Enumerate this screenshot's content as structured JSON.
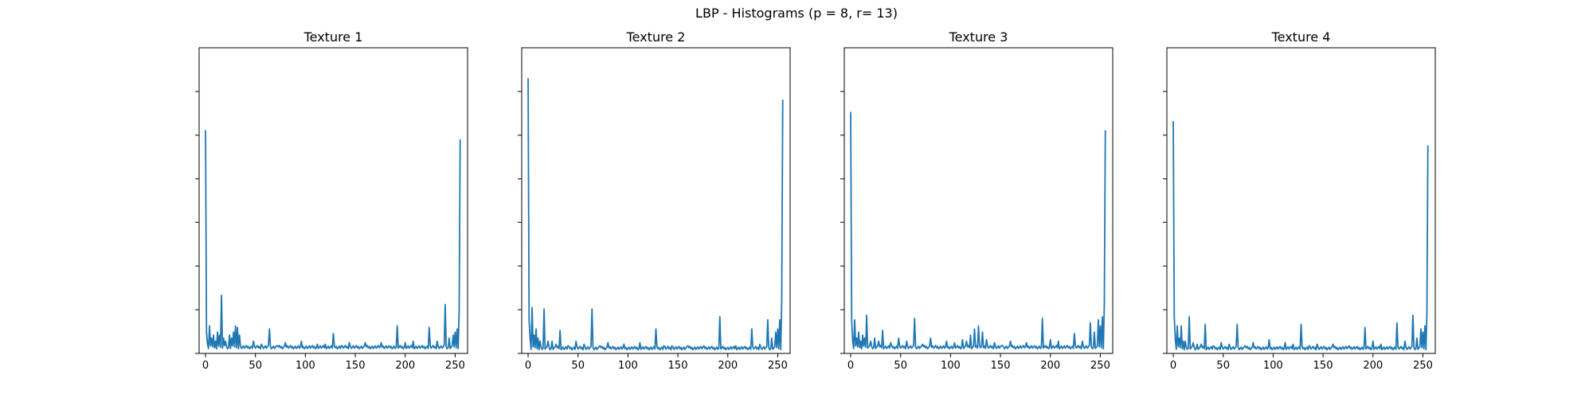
{
  "figure": {
    "title": "LBP - Histograms (p = 8, r= 13)"
  },
  "chart_data": [
    {
      "type": "line",
      "title": "Texture 1",
      "xlim": [
        -6.4,
        262.4
      ],
      "ylim": [
        0,
        1.0
      ],
      "xticks": [
        0,
        50,
        100,
        150,
        200,
        250
      ],
      "yticks": [
        0,
        0.143,
        0.286,
        0.429,
        0.571,
        0.714,
        0.857
      ],
      "ytick_labels_shown": false,
      "color": "#1f77b4",
      "base": 0.015,
      "ends": {
        "first": 0.73,
        "last": 0.7
      },
      "peaks": [
        [
          1,
          0.07
        ],
        [
          2,
          0.03
        ],
        [
          4,
          0.09
        ],
        [
          6,
          0.05
        ],
        [
          8,
          0.06
        ],
        [
          10,
          0.04
        ],
        [
          12,
          0.07
        ],
        [
          14,
          0.06
        ],
        [
          16,
          0.19
        ],
        [
          18,
          0.05
        ],
        [
          20,
          0.04
        ],
        [
          24,
          0.06
        ],
        [
          26,
          0.05
        ],
        [
          28,
          0.07
        ],
        [
          30,
          0.09
        ],
        [
          32,
          0.085
        ],
        [
          34,
          0.06
        ],
        [
          48,
          0.04
        ],
        [
          56,
          0.03
        ],
        [
          64,
          0.08
        ],
        [
          72,
          0.025
        ],
        [
          80,
          0.035
        ],
        [
          96,
          0.04
        ],
        [
          112,
          0.03
        ],
        [
          120,
          0.03
        ],
        [
          128,
          0.065
        ],
        [
          136,
          0.025
        ],
        [
          144,
          0.035
        ],
        [
          160,
          0.035
        ],
        [
          176,
          0.035
        ],
        [
          184,
          0.025
        ],
        [
          192,
          0.09
        ],
        [
          200,
          0.035
        ],
        [
          208,
          0.04
        ],
        [
          224,
          0.085
        ],
        [
          232,
          0.04
        ],
        [
          240,
          0.16
        ],
        [
          244,
          0.05
        ],
        [
          248,
          0.06
        ],
        [
          250,
          0.07
        ],
        [
          252,
          0.08
        ],
        [
          254,
          0.14
        ]
      ]
    },
    {
      "type": "line",
      "title": "Texture 2",
      "xlim": [
        -6.4,
        262.4
      ],
      "ylim": [
        0,
        1.0
      ],
      "xticks": [
        0,
        50,
        100,
        150,
        200,
        250
      ],
      "yticks": [
        0,
        0.143,
        0.286,
        0.429,
        0.571,
        0.714,
        0.857
      ],
      "ytick_labels_shown": false,
      "color": "#1f77b4",
      "base": 0.012,
      "ends": {
        "first": 0.9,
        "last": 0.83
      },
      "peaks": [
        [
          1,
          0.11
        ],
        [
          2,
          0.05
        ],
        [
          4,
          0.15
        ],
        [
          6,
          0.06
        ],
        [
          8,
          0.08
        ],
        [
          10,
          0.05
        ],
        [
          12,
          0.04
        ],
        [
          16,
          0.145
        ],
        [
          20,
          0.04
        ],
        [
          24,
          0.04
        ],
        [
          28,
          0.03
        ],
        [
          32,
          0.075
        ],
        [
          40,
          0.025
        ],
        [
          48,
          0.04
        ],
        [
          56,
          0.03
        ],
        [
          64,
          0.145
        ],
        [
          72,
          0.025
        ],
        [
          80,
          0.035
        ],
        [
          96,
          0.03
        ],
        [
          112,
          0.035
        ],
        [
          128,
          0.08
        ],
        [
          136,
          0.025
        ],
        [
          144,
          0.025
        ],
        [
          160,
          0.025
        ],
        [
          176,
          0.025
        ],
        [
          192,
          0.12
        ],
        [
          200,
          0.02
        ],
        [
          208,
          0.025
        ],
        [
          224,
          0.08
        ],
        [
          232,
          0.03
        ],
        [
          240,
          0.11
        ],
        [
          244,
          0.05
        ],
        [
          248,
          0.07
        ],
        [
          250,
          0.08
        ],
        [
          252,
          0.11
        ],
        [
          254,
          0.18
        ]
      ]
    },
    {
      "type": "line",
      "title": "Texture 3",
      "xlim": [
        -6.4,
        262.4
      ],
      "ylim": [
        0,
        1.0
      ],
      "xticks": [
        0,
        50,
        100,
        150,
        200,
        250
      ],
      "yticks": [
        0,
        0.143,
        0.286,
        0.429,
        0.571,
        0.714,
        0.857
      ],
      "ytick_labels_shown": false,
      "color": "#1f77b4",
      "base": 0.015,
      "ends": {
        "first": 0.79,
        "last": 0.73
      },
      "peaks": [
        [
          1,
          0.11
        ],
        [
          2,
          0.04
        ],
        [
          4,
          0.11
        ],
        [
          6,
          0.05
        ],
        [
          8,
          0.07
        ],
        [
          10,
          0.04
        ],
        [
          12,
          0.06
        ],
        [
          14,
          0.05
        ],
        [
          16,
          0.125
        ],
        [
          20,
          0.04
        ],
        [
          24,
          0.05
        ],
        [
          28,
          0.04
        ],
        [
          32,
          0.075
        ],
        [
          40,
          0.035
        ],
        [
          48,
          0.05
        ],
        [
          56,
          0.04
        ],
        [
          64,
          0.115
        ],
        [
          72,
          0.03
        ],
        [
          80,
          0.05
        ],
        [
          96,
          0.04
        ],
        [
          104,
          0.035
        ],
        [
          112,
          0.045
        ],
        [
          116,
          0.04
        ],
        [
          120,
          0.06
        ],
        [
          124,
          0.08
        ],
        [
          128,
          0.09
        ],
        [
          132,
          0.07
        ],
        [
          136,
          0.045
        ],
        [
          144,
          0.035
        ],
        [
          152,
          0.025
        ],
        [
          160,
          0.04
        ],
        [
          176,
          0.035
        ],
        [
          184,
          0.025
        ],
        [
          192,
          0.115
        ],
        [
          200,
          0.045
        ],
        [
          208,
          0.04
        ],
        [
          224,
          0.065
        ],
        [
          232,
          0.04
        ],
        [
          240,
          0.1
        ],
        [
          244,
          0.07
        ],
        [
          248,
          0.11
        ],
        [
          250,
          0.09
        ],
        [
          252,
          0.12
        ],
        [
          254,
          0.16
        ]
      ]
    },
    {
      "type": "line",
      "title": "Texture 4",
      "xlim": [
        -6.4,
        262.4
      ],
      "ylim": [
        0,
        1.0
      ],
      "xticks": [
        0,
        50,
        100,
        150,
        200,
        250
      ],
      "yticks": [
        0,
        0.143,
        0.286,
        0.429,
        0.571,
        0.714,
        0.857
      ],
      "ytick_labels_shown": false,
      "color": "#1f77b4",
      "base": 0.012,
      "ends": {
        "first": 0.76,
        "last": 0.68
      },
      "peaks": [
        [
          1,
          0.12
        ],
        [
          2,
          0.05
        ],
        [
          4,
          0.09
        ],
        [
          6,
          0.05
        ],
        [
          8,
          0.09
        ],
        [
          10,
          0.04
        ],
        [
          12,
          0.04
        ],
        [
          16,
          0.12
        ],
        [
          20,
          0.035
        ],
        [
          24,
          0.03
        ],
        [
          28,
          0.03
        ],
        [
          32,
          0.095
        ],
        [
          40,
          0.025
        ],
        [
          48,
          0.035
        ],
        [
          56,
          0.03
        ],
        [
          64,
          0.095
        ],
        [
          72,
          0.025
        ],
        [
          80,
          0.035
        ],
        [
          96,
          0.045
        ],
        [
          112,
          0.035
        ],
        [
          120,
          0.03
        ],
        [
          128,
          0.095
        ],
        [
          136,
          0.025
        ],
        [
          144,
          0.03
        ],
        [
          160,
          0.03
        ],
        [
          176,
          0.025
        ],
        [
          192,
          0.085
        ],
        [
          200,
          0.04
        ],
        [
          208,
          0.03
        ],
        [
          224,
          0.1
        ],
        [
          232,
          0.04
        ],
        [
          240,
          0.125
        ],
        [
          244,
          0.05
        ],
        [
          248,
          0.08
        ],
        [
          250,
          0.07
        ],
        [
          252,
          0.09
        ],
        [
          254,
          0.13
        ]
      ]
    }
  ]
}
